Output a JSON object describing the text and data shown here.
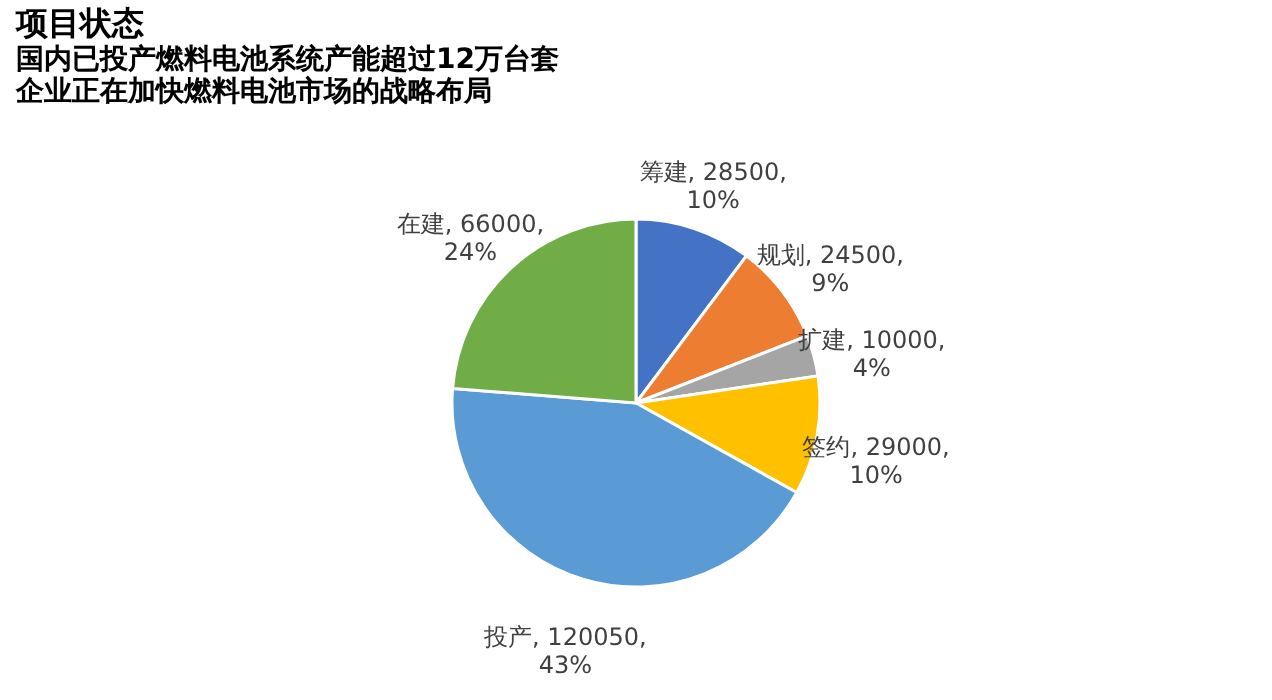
{
  "chart_data": {
    "type": "pie",
    "title": "项目状态",
    "subtitle": "国内已投产燃料电池系统产能超过12万台套",
    "annotations": [
      "企业正在加快燃料电池市场的战略布局"
    ],
    "categories": [
      "筹建",
      "规划",
      "扩建",
      "签约",
      "投产",
      "在建"
    ],
    "values": [
      28500,
      24500,
      10000,
      29000,
      120050,
      66000
    ],
    "colors": [
      "#4472c4",
      "#ed7d31",
      "#a5a5a5",
      "#ffc000",
      "#5b9bd5",
      "#70ad47"
    ],
    "value_labels": [
      "28500, 10%",
      "24500, 9%",
      "10000, 4%",
      "29000, 10%",
      "120050, 43%",
      "66000, 24%"
    ],
    "legend": false
  }
}
